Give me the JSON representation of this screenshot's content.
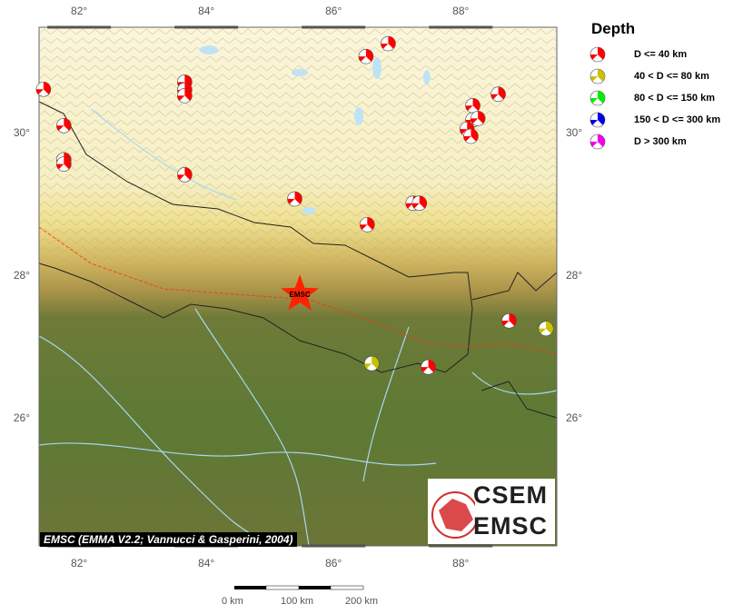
{
  "map": {
    "lon_range": [
      81.37,
      89.51
    ],
    "lat_range": [
      24.2,
      31.48
    ],
    "lon_ticks": [
      "82°",
      "84°",
      "86°",
      "88°"
    ],
    "lat_ticks": [
      "30°",
      "28°",
      "26°"
    ],
    "colors": {
      "shallow": "#ff0000",
      "intermediate": "#c8c000",
      "border": "#222222",
      "fault": "#ff3300",
      "river": "#a8d8f0"
    }
  },
  "legend": {
    "title": "Depth",
    "items": [
      {
        "label": "D <= 40 km",
        "color": "#ff0000"
      },
      {
        "label": "40 < D <= 80 km",
        "color": "#c8c000"
      },
      {
        "label": "80 < D <= 150 km",
        "color": "#00ee00"
      },
      {
        "label": "150 < D <= 300 km",
        "color": "#0000ee"
      },
      {
        "label": "D > 300 km",
        "color": "#ee00ee"
      }
    ]
  },
  "mainshock": {
    "label": "EMSC",
    "lon": 85.47,
    "lat": 27.73,
    "color": "#ff2200"
  },
  "events": [
    {
      "lon": 81.44,
      "lat": 30.61,
      "depth_class": 0
    },
    {
      "lon": 81.76,
      "lat": 30.1,
      "depth_class": 0
    },
    {
      "lon": 81.76,
      "lat": 29.62,
      "depth_class": 0
    },
    {
      "lon": 81.76,
      "lat": 29.56,
      "depth_class": 0
    },
    {
      "lon": 83.66,
      "lat": 30.71,
      "depth_class": 0
    },
    {
      "lon": 83.66,
      "lat": 30.6,
      "depth_class": 0
    },
    {
      "lon": 83.66,
      "lat": 30.52,
      "depth_class": 0
    },
    {
      "lon": 83.66,
      "lat": 29.41,
      "depth_class": 0
    },
    {
      "lon": 86.51,
      "lat": 31.07,
      "depth_class": 0
    },
    {
      "lon": 86.86,
      "lat": 31.25,
      "depth_class": 0
    },
    {
      "lon": 88.59,
      "lat": 30.54,
      "depth_class": 0
    },
    {
      "lon": 88.19,
      "lat": 30.38,
      "depth_class": 0
    },
    {
      "lon": 88.19,
      "lat": 30.18,
      "depth_class": 0
    },
    {
      "lon": 88.27,
      "lat": 30.2,
      "depth_class": 0
    },
    {
      "lon": 88.1,
      "lat": 30.05,
      "depth_class": 0
    },
    {
      "lon": 88.16,
      "lat": 29.95,
      "depth_class": 0
    },
    {
      "lon": 85.39,
      "lat": 29.07,
      "depth_class": 0
    },
    {
      "lon": 86.53,
      "lat": 28.71,
      "depth_class": 0
    },
    {
      "lon": 87.25,
      "lat": 29.01,
      "depth_class": 0
    },
    {
      "lon": 87.35,
      "lat": 29.01,
      "depth_class": 0
    },
    {
      "lon": 88.76,
      "lat": 27.36,
      "depth_class": 0
    },
    {
      "lon": 89.34,
      "lat": 27.25,
      "depth_class": 1
    },
    {
      "lon": 86.6,
      "lat": 26.76,
      "depth_class": 1
    },
    {
      "lon": 87.49,
      "lat": 26.71,
      "depth_class": 0
    }
  ],
  "attribution": "EMSC (EMMA V2.2; Vannucci & Gasperini, 2004)",
  "logo": {
    "line1": "CSEM",
    "line2": "EMSC"
  },
  "scalebar": {
    "labels": [
      "0 km",
      "100 km",
      "200 km"
    ]
  }
}
